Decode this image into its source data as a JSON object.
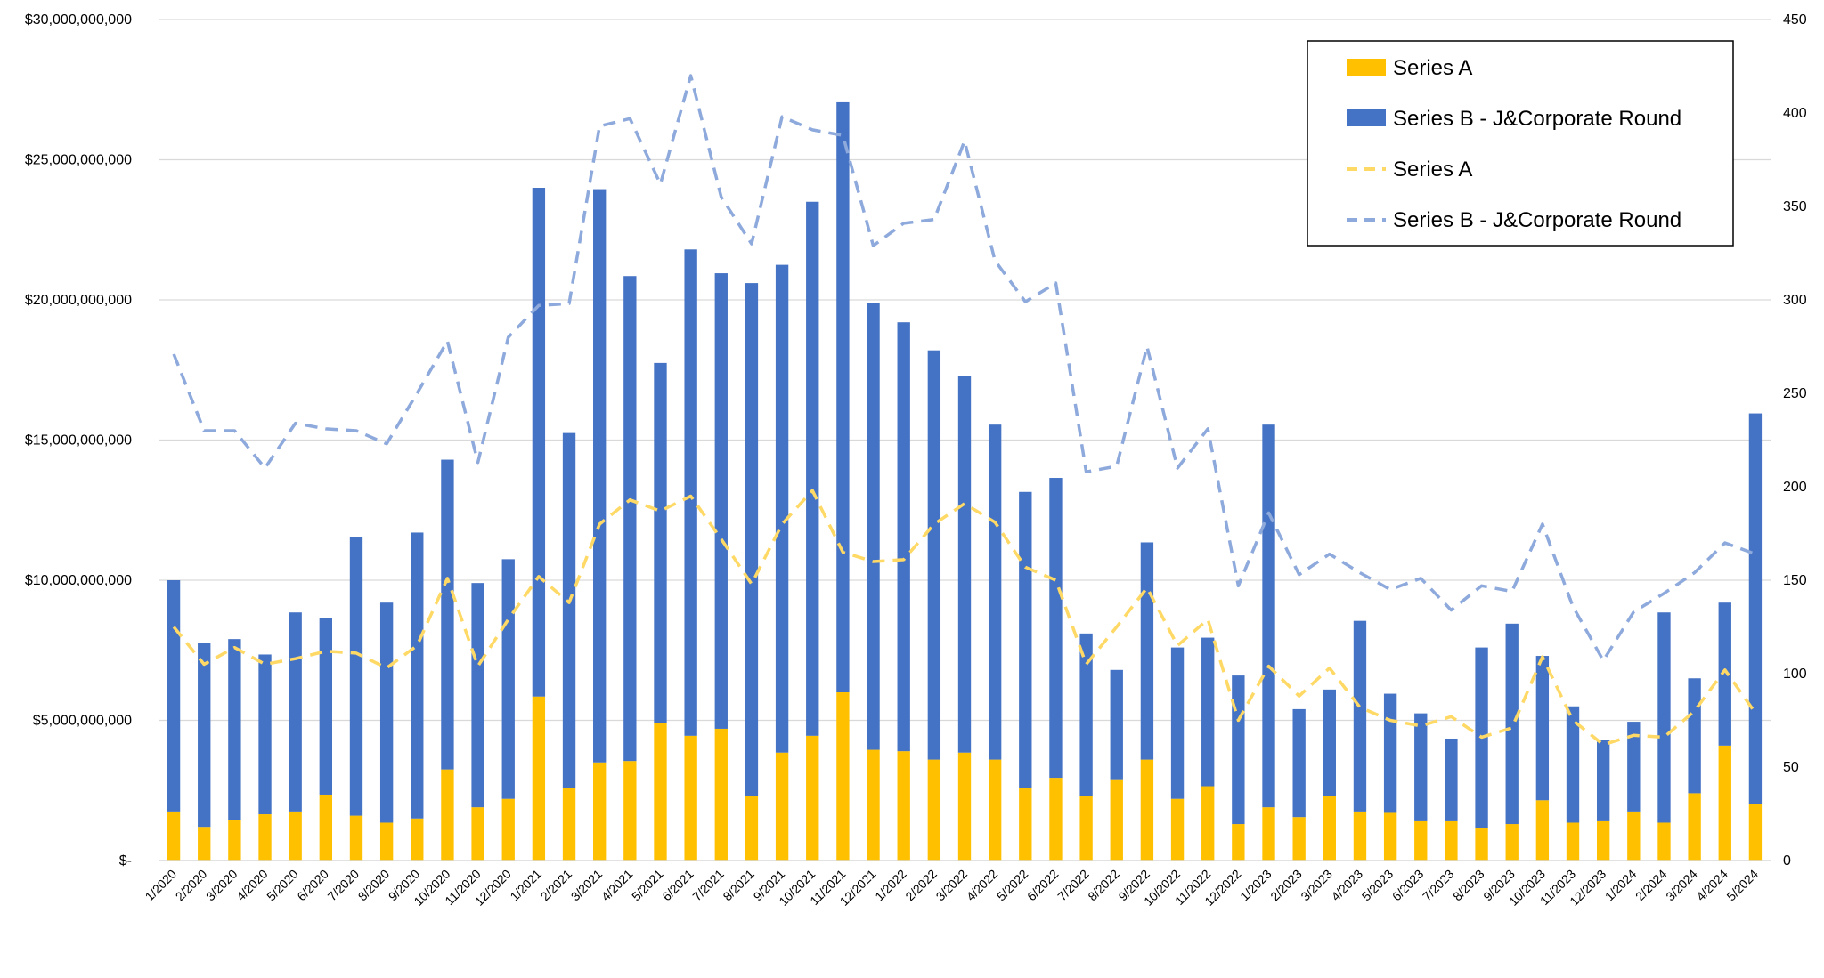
{
  "colors": {
    "series_a_bar": "#FFC000",
    "series_b_bar": "#4472C4",
    "series_a_line": "#FFD966",
    "series_b_line": "#8EA9DB",
    "grid": "#D9D9D9"
  },
  "legend": {
    "position": "top-right",
    "entries": [
      {
        "label": "Series A",
        "kind": "bar",
        "color": "#FFC000"
      },
      {
        "label": "Series B - J&Corporate Round",
        "kind": "bar",
        "color": "#4472C4"
      },
      {
        "label": "Series A",
        "kind": "dashed-line",
        "color": "#FFD966"
      },
      {
        "label": "Series B - J&Corporate Round",
        "kind": "dashed-line",
        "color": "#8EA9DB"
      }
    ]
  },
  "chart_data": {
    "type": "bar",
    "stacked": true,
    "grid": true,
    "title": "",
    "xlabel": "",
    "ylabel": "",
    "y_left_lim": [
      0,
      30000000000
    ],
    "y_left_ticks": [
      {
        "value": 0,
        "label": "$-"
      },
      {
        "value": 5000000000,
        "label": "$5,000,000,000"
      },
      {
        "value": 10000000000,
        "label": "$10,000,000,000"
      },
      {
        "value": 15000000000,
        "label": "$15,000,000,000"
      },
      {
        "value": 20000000000,
        "label": "$20,000,000,000"
      },
      {
        "value": 25000000000,
        "label": "$25,000,000,000"
      },
      {
        "value": 30000000000,
        "label": "$30,000,000,000"
      }
    ],
    "y_right_lim": [
      0,
      450
    ],
    "y_right_ticks": [
      0,
      50,
      100,
      150,
      200,
      250,
      300,
      350,
      400,
      450
    ],
    "categories": [
      "1/2020",
      "2/2020",
      "3/2020",
      "4/2020",
      "5/2020",
      "6/2020",
      "7/2020",
      "8/2020",
      "9/2020",
      "10/2020",
      "11/2020",
      "12/2020",
      "1/2021",
      "2/2021",
      "3/2021",
      "4/2021",
      "5/2021",
      "6/2021",
      "7/2021",
      "8/2021",
      "9/2021",
      "10/2021",
      "11/2021",
      "12/2021",
      "1/2022",
      "2/2022",
      "3/2022",
      "4/2022",
      "5/2022",
      "6/2022",
      "7/2022",
      "8/2022",
      "9/2022",
      "10/2022",
      "11/2022",
      "12/2022",
      "1/2023",
      "2/2023",
      "3/2023",
      "4/2023",
      "5/2023",
      "6/2023",
      "7/2023",
      "8/2023",
      "9/2023",
      "10/2023",
      "11/2023",
      "12/2023",
      "1/2024",
      "2/2024",
      "3/2024",
      "4/2024",
      "5/2024"
    ],
    "bar_series": [
      {
        "name": "Series A",
        "axis": "left",
        "values": [
          1.75,
          1.2,
          1.45,
          1.65,
          1.75,
          2.35,
          1.6,
          1.35,
          1.5,
          3.25,
          1.9,
          2.2,
          5.85,
          2.6,
          3.5,
          3.55,
          4.9,
          4.45,
          4.7,
          2.3,
          3.85,
          4.45,
          6.0,
          3.95,
          3.9,
          3.6,
          3.85,
          3.6,
          2.6,
          2.95,
          2.3,
          2.9,
          3.6,
          2.2,
          2.65,
          1.3,
          1.9,
          1.55,
          2.3,
          1.75,
          1.7,
          1.4,
          1.4,
          1.15,
          1.3,
          2.15,
          1.35,
          1.4,
          1.75,
          1.35,
          2.4,
          4.1,
          2.0
        ],
        "unit": "billion USD"
      },
      {
        "name": "Series B - J&Corporate Round",
        "axis": "left",
        "values": [
          8.25,
          6.55,
          6.45,
          5.7,
          7.1,
          6.3,
          9.95,
          7.85,
          10.2,
          11.05,
          8.0,
          8.55,
          18.15,
          12.65,
          20.45,
          17.3,
          12.85,
          17.35,
          16.25,
          18.3,
          17.4,
          19.05,
          21.05,
          15.95,
          15.3,
          14.6,
          13.45,
          11.95,
          10.55,
          10.7,
          5.8,
          3.9,
          7.75,
          5.4,
          5.3,
          5.3,
          13.65,
          3.85,
          3.8,
          6.8,
          4.25,
          3.85,
          2.95,
          6.45,
          7.15,
          5.15,
          4.15,
          2.9,
          3.2,
          7.5,
          4.1,
          5.1,
          13.95
        ],
        "unit": "billion USD"
      }
    ],
    "line_series": [
      {
        "name": "Series A",
        "axis": "right",
        "style": "dashed",
        "values": [
          125,
          105,
          114,
          105,
          108,
          112,
          111,
          103,
          115,
          151,
          104,
          129,
          152,
          138,
          180,
          193,
          187,
          195,
          172,
          148,
          180,
          198,
          165,
          160,
          161,
          180,
          191,
          181,
          157,
          150,
          105,
          125,
          146,
          115,
          129,
          75,
          104,
          88,
          103,
          82,
          75,
          72,
          77,
          66,
          71,
          109,
          75,
          62,
          67,
          66,
          80,
          102,
          79
        ]
      },
      {
        "name": "Series B - J&Corporate Round",
        "axis": "right",
        "style": "dashed",
        "values": [
          271,
          230,
          230,
          210,
          234,
          231,
          230,
          223,
          250,
          278,
          213,
          280,
          297,
          298,
          393,
          397,
          362,
          420,
          355,
          330,
          398,
          391,
          388,
          329,
          341,
          343,
          385,
          321,
          299,
          309,
          208,
          211,
          275,
          210,
          231,
          147,
          186,
          153,
          164,
          154,
          145,
          151,
          134,
          147,
          144,
          180,
          136,
          107,
          133,
          143,
          154,
          170,
          164
        ]
      }
    ]
  }
}
